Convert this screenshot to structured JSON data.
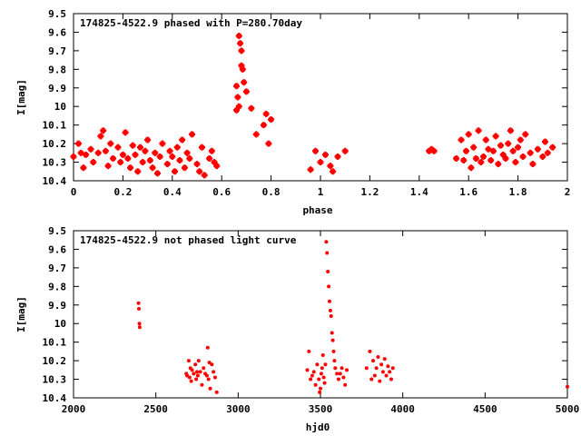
{
  "chart_data": [
    {
      "type": "scatter",
      "title": "174825-4522.9 phased with P=280.70day",
      "xlabel": "phase",
      "ylabel": "I[mag]",
      "xlim": [
        0,
        2
      ],
      "ylim": [
        10.4,
        9.5
      ],
      "y_inverted": true,
      "xticks": [
        "0",
        "0.2",
        "0.4",
        "0.6",
        "0.8",
        "1",
        "1.2",
        "1.4",
        "1.6",
        "1.8",
        "2"
      ],
      "yticks": [
        "9.5",
        "9.6",
        "9.7",
        "9.8",
        "9.9",
        "10",
        "10.1",
        "10.2",
        "10.3",
        "10.4"
      ],
      "color": "#ff0000",
      "marker": "star",
      "series": [
        {
          "x": [
            0.0,
            0.02,
            0.03,
            0.04,
            0.05,
            0.07,
            0.08,
            0.1,
            0.11,
            0.12,
            0.13,
            0.14,
            0.15,
            0.16,
            0.18,
            0.19,
            0.2,
            0.21,
            0.22,
            0.23,
            0.24,
            0.25,
            0.26,
            0.27,
            0.28,
            0.29,
            0.3,
            0.31,
            0.32,
            0.33,
            0.34,
            0.35,
            0.36,
            0.38,
            0.39,
            0.4,
            0.41,
            0.42,
            0.43,
            0.44,
            0.45,
            0.46,
            0.47,
            0.48,
            0.5,
            0.51,
            0.52,
            0.53,
            0.55,
            0.56,
            0.57,
            0.58,
            0.66,
            0.66,
            0.665,
            0.67,
            0.67,
            0.675,
            0.68,
            0.68,
            0.685,
            0.69,
            0.7,
            0.72,
            0.74,
            0.77,
            0.78,
            0.79,
            0.8,
            0.96,
            0.98,
            1.0,
            1.02,
            1.04,
            1.05,
            1.07,
            1.1,
            1.44,
            1.45,
            1.46,
            1.55,
            1.57,
            1.58,
            1.59,
            1.6,
            1.61,
            1.62,
            1.63,
            1.64,
            1.65,
            1.66,
            1.67,
            1.68,
            1.69,
            1.7,
            1.71,
            1.72,
            1.73,
            1.74,
            1.75,
            1.76,
            1.77,
            1.78,
            1.79,
            1.8,
            1.81,
            1.82,
            1.83,
            1.85,
            1.86,
            1.88,
            1.9,
            1.91,
            1.92,
            1.94
          ],
          "y": [
            10.27,
            10.2,
            10.25,
            10.33,
            10.26,
            10.23,
            10.3,
            10.25,
            10.16,
            10.13,
            10.24,
            10.32,
            10.2,
            10.28,
            10.22,
            10.3,
            10.26,
            10.14,
            10.28,
            10.33,
            10.21,
            10.26,
            10.35,
            10.22,
            10.3,
            10.24,
            10.18,
            10.29,
            10.33,
            10.25,
            10.36,
            10.27,
            10.2,
            10.31,
            10.24,
            10.27,
            10.35,
            10.22,
            10.29,
            10.18,
            10.33,
            10.25,
            10.28,
            10.15,
            10.31,
            10.35,
            10.22,
            10.37,
            10.28,
            10.24,
            10.3,
            10.32,
            9.89,
            10.02,
            9.95,
            10.0,
            9.62,
            9.66,
            9.7,
            9.78,
            9.8,
            9.87,
            9.92,
            10.01,
            10.15,
            10.1,
            10.04,
            10.2,
            10.07,
            10.34,
            10.24,
            10.3,
            10.26,
            10.32,
            10.35,
            10.27,
            10.24,
            10.24,
            10.23,
            10.24,
            10.28,
            10.18,
            10.29,
            10.24,
            10.15,
            10.33,
            10.22,
            10.28,
            10.13,
            10.3,
            10.27,
            10.18,
            10.23,
            10.29,
            10.24,
            10.16,
            10.31,
            10.21,
            10.26,
            10.28,
            10.2,
            10.13,
            10.24,
            10.3,
            10.22,
            10.18,
            10.27,
            10.15,
            10.25,
            10.31,
            10.23,
            10.27,
            10.19,
            10.25,
            10.22
          ]
        }
      ]
    },
    {
      "type": "scatter",
      "title": "174825-4522.9 not phased light curve",
      "xlabel": "hjd0",
      "ylabel": "I[mag]",
      "xlim": [
        2000,
        5000
      ],
      "ylim": [
        10.4,
        9.5
      ],
      "y_inverted": true,
      "xticks": [
        "2000",
        "2500",
        "3000",
        "3500",
        "4000",
        "4500",
        "5000"
      ],
      "yticks": [
        "9.5",
        "9.6",
        "9.7",
        "9.8",
        "9.9",
        "10",
        "10.1",
        "10.2",
        "10.3",
        "10.4"
      ],
      "color": "#ff0000",
      "marker": "dot",
      "series": [
        {
          "x": [
            2395,
            2397,
            2400,
            2402,
            2685,
            2690,
            2700,
            2705,
            2710,
            2715,
            2720,
            2730,
            2740,
            2745,
            2750,
            2755,
            2760,
            2770,
            2780,
            2790,
            2800,
            2810,
            2815,
            2820,
            2825,
            2830,
            2840,
            2850,
            2860,
            2870,
            3420,
            3430,
            3440,
            3450,
            3460,
            3470,
            3480,
            3490,
            3495,
            3500,
            3505,
            3510,
            3515,
            3520,
            3525,
            3530,
            3535,
            3540,
            3545,
            3550,
            3555,
            3560,
            3565,
            3570,
            3575,
            3580,
            3585,
            3590,
            3600,
            3610,
            3620,
            3630,
            3640,
            3650,
            3660,
            3780,
            3800,
            3810,
            3820,
            3830,
            3840,
            3850,
            3860,
            3870,
            3880,
            3890,
            3900,
            3910,
            3920,
            3930,
            3940,
            5000
          ],
          "y": [
            9.89,
            9.92,
            10.0,
            10.02,
            10.27,
            10.28,
            10.2,
            10.29,
            10.24,
            10.31,
            10.25,
            10.27,
            10.22,
            10.3,
            10.26,
            10.28,
            10.2,
            10.26,
            10.33,
            10.24,
            10.27,
            10.28,
            10.13,
            10.3,
            10.21,
            10.35,
            10.22,
            10.26,
            10.29,
            10.37,
            10.25,
            10.15,
            10.3,
            10.28,
            10.26,
            10.33,
            10.22,
            10.3,
            10.37,
            10.35,
            10.27,
            10.24,
            10.17,
            10.29,
            10.32,
            10.22,
            9.56,
            9.62,
            9.72,
            9.8,
            9.88,
            9.93,
            9.96,
            10.05,
            10.09,
            10.15,
            10.2,
            10.24,
            10.27,
            10.3,
            10.27,
            10.24,
            10.29,
            10.33,
            10.25,
            10.24,
            10.15,
            10.3,
            10.2,
            10.28,
            10.24,
            10.18,
            10.31,
            10.22,
            10.26,
            10.19,
            10.28,
            10.23,
            10.26,
            10.3,
            10.24,
            10.34
          ]
        }
      ]
    }
  ]
}
